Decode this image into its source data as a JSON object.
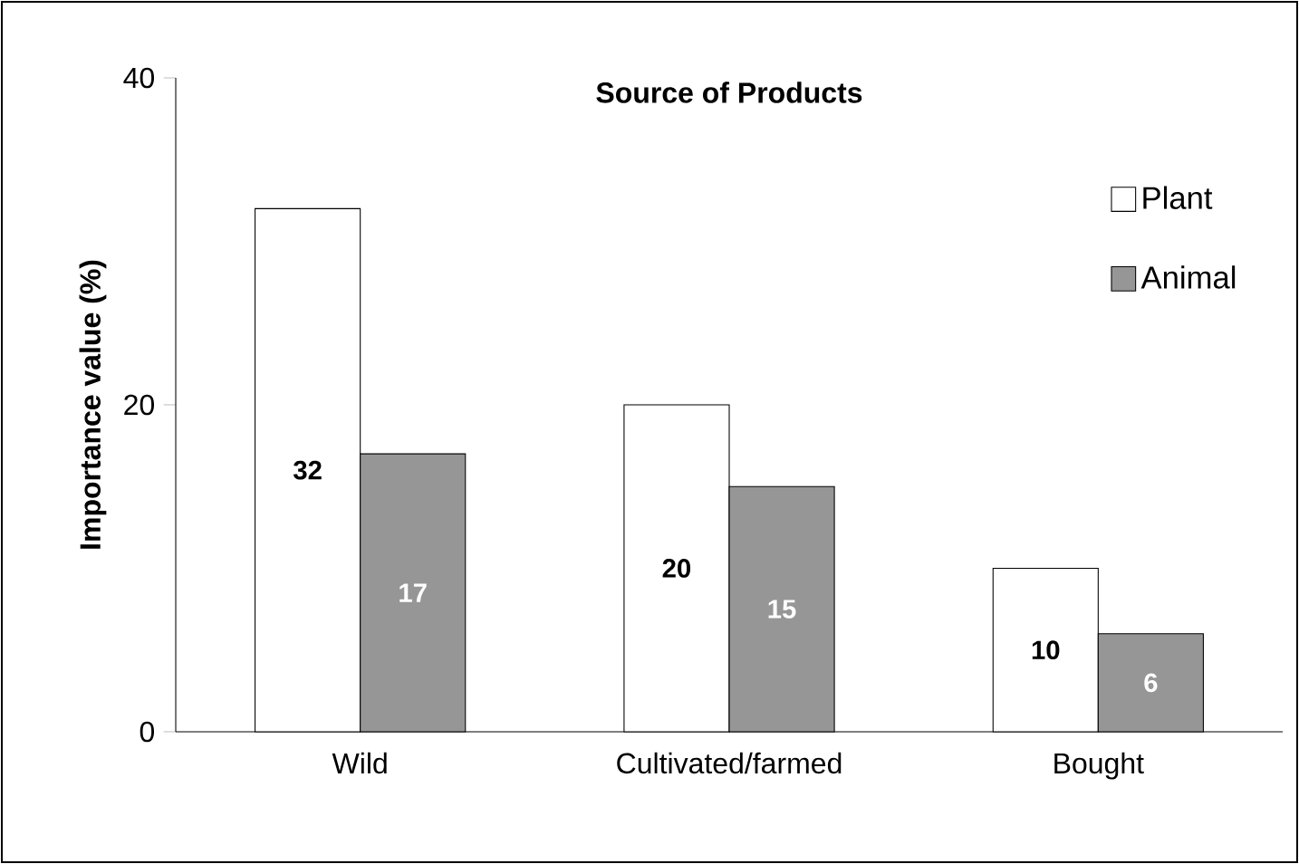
{
  "chart_data": {
    "type": "bar",
    "title": "Source of Products",
    "ylabel": "Importance value (%)",
    "categories": [
      "Wild",
      "Cultivated/farmed",
      "Bought"
    ],
    "series": [
      {
        "name": "Plant",
        "color": "#ffffff",
        "values": [
          32,
          20,
          10
        ]
      },
      {
        "name": "Animal",
        "color": "#969696",
        "values": [
          17,
          15,
          6
        ]
      }
    ],
    "ylim": [
      0,
      40
    ],
    "yticks": [
      0,
      20,
      40
    ],
    "data_labels": true,
    "legend": "top right"
  }
}
